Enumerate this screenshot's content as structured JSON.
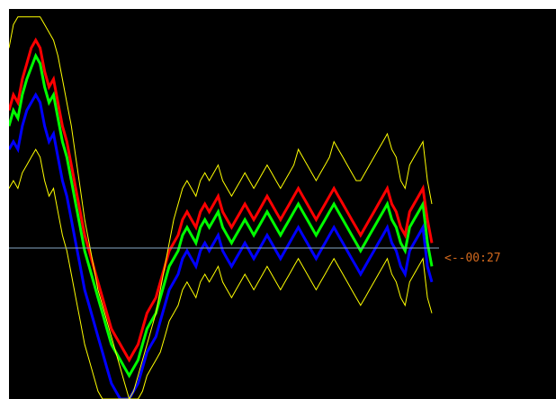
{
  "chart_data": {
    "type": "line",
    "title": "",
    "xlabel": "",
    "ylabel": "",
    "grid": false,
    "ylim": [
      0,
      100
    ],
    "x": [
      0,
      1,
      2,
      3,
      4,
      5,
      6,
      7,
      8,
      9,
      10,
      11,
      12,
      13,
      14,
      15,
      16,
      17,
      18,
      19,
      20,
      21,
      22,
      23,
      24,
      25,
      26,
      27,
      28,
      29,
      30,
      31,
      32,
      33,
      34,
      35,
      36,
      37,
      38,
      39,
      40,
      41,
      42,
      43,
      44,
      45,
      46,
      47,
      48,
      49,
      50,
      51,
      52,
      53,
      54,
      55,
      56,
      57,
      58,
      59,
      60,
      61,
      62,
      63,
      64,
      65,
      66,
      67,
      68,
      69,
      70,
      71,
      72,
      73,
      74,
      75,
      76,
      77,
      78,
      79,
      80,
      81,
      82,
      83,
      84,
      85,
      86,
      87,
      88,
      89,
      90,
      91,
      92,
      93,
      94,
      95
    ],
    "series": [
      {
        "color": "#00ff00",
        "values": [
          70,
          74,
          72,
          78,
          82,
          85,
          88,
          86,
          80,
          76,
          78,
          72,
          66,
          62,
          56,
          50,
          44,
          38,
          34,
          30,
          26,
          22,
          18,
          14,
          12,
          10,
          8,
          6,
          8,
          10,
          14,
          18,
          20,
          22,
          26,
          30,
          34,
          36,
          38,
          42,
          44,
          42,
          40,
          44,
          46,
          44,
          46,
          48,
          44,
          42,
          40,
          42,
          44,
          46,
          44,
          42,
          44,
          46,
          48,
          46,
          44,
          42,
          44,
          46,
          48,
          50,
          48,
          46,
          44,
          42,
          44,
          46,
          48,
          50,
          48,
          46,
          44,
          42,
          40,
          38,
          40,
          42,
          44,
          46,
          48,
          50,
          46,
          44,
          40,
          38,
          44,
          46,
          48,
          50,
          40,
          34
        ]
      },
      {
        "color": "#ff0000",
        "values": [
          74,
          78,
          76,
          82,
          86,
          90,
          92,
          90,
          84,
          80,
          82,
          76,
          70,
          66,
          60,
          54,
          48,
          42,
          38,
          34,
          30,
          26,
          22,
          18,
          16,
          14,
          12,
          10,
          12,
          14,
          18,
          22,
          24,
          26,
          30,
          34,
          38,
          40,
          42,
          46,
          48,
          46,
          44,
          48,
          50,
          48,
          50,
          52,
          48,
          46,
          44,
          46,
          48,
          50,
          48,
          46,
          48,
          50,
          52,
          50,
          48,
          46,
          48,
          50,
          52,
          54,
          52,
          50,
          48,
          46,
          48,
          50,
          52,
          54,
          52,
          50,
          48,
          46,
          44,
          42,
          44,
          46,
          48,
          50,
          52,
          54,
          50,
          48,
          44,
          42,
          48,
          50,
          52,
          54,
          46,
          40
        ]
      },
      {
        "color": "#0000ff",
        "values": [
          64,
          66,
          64,
          70,
          74,
          76,
          78,
          76,
          70,
          66,
          68,
          62,
          56,
          52,
          46,
          40,
          34,
          28,
          24,
          20,
          16,
          12,
          8,
          4,
          2,
          0,
          0,
          0,
          2,
          4,
          8,
          12,
          14,
          16,
          20,
          24,
          28,
          30,
          32,
          36,
          38,
          36,
          34,
          38,
          40,
          38,
          40,
          42,
          38,
          36,
          34,
          36,
          38,
          40,
          38,
          36,
          38,
          40,
          42,
          40,
          38,
          36,
          38,
          40,
          42,
          44,
          42,
          40,
          38,
          36,
          38,
          40,
          42,
          44,
          42,
          40,
          38,
          36,
          34,
          32,
          34,
          36,
          38,
          40,
          42,
          44,
          40,
          38,
          34,
          32,
          38,
          40,
          42,
          44,
          34,
          30
        ]
      },
      {
        "color": "#ffff00",
        "values": [
          90,
          96,
          98,
          98,
          98,
          98,
          98,
          98,
          96,
          94,
          92,
          88,
          82,
          76,
          70,
          62,
          54,
          46,
          40,
          34,
          28,
          24,
          20,
          16,
          12,
          8,
          4,
          0,
          2,
          6,
          10,
          14,
          18,
          22,
          28,
          34,
          40,
          46,
          50,
          54,
          56,
          54,
          52,
          56,
          58,
          56,
          58,
          60,
          56,
          54,
          52,
          54,
          56,
          58,
          56,
          54,
          56,
          58,
          60,
          58,
          56,
          54,
          56,
          58,
          60,
          64,
          62,
          60,
          58,
          56,
          58,
          60,
          62,
          66,
          64,
          62,
          60,
          58,
          56,
          56,
          58,
          60,
          62,
          64,
          66,
          68,
          64,
          62,
          56,
          54,
          60,
          62,
          64,
          66,
          56,
          50
        ]
      },
      {
        "color": "#ffff00",
        "values": [
          54,
          56,
          54,
          58,
          60,
          62,
          64,
          62,
          56,
          52,
          54,
          48,
          42,
          38,
          32,
          26,
          20,
          14,
          10,
          6,
          2,
          0,
          0,
          0,
          0,
          0,
          0,
          0,
          0,
          0,
          2,
          6,
          8,
          10,
          12,
          16,
          20,
          22,
          24,
          28,
          30,
          28,
          26,
          30,
          32,
          30,
          32,
          34,
          30,
          28,
          26,
          28,
          30,
          32,
          30,
          28,
          30,
          32,
          34,
          32,
          30,
          28,
          30,
          32,
          34,
          36,
          34,
          32,
          30,
          28,
          30,
          32,
          34,
          36,
          34,
          32,
          30,
          28,
          26,
          24,
          26,
          28,
          30,
          32,
          34,
          36,
          32,
          30,
          26,
          24,
          30,
          32,
          34,
          36,
          26,
          22
        ]
      }
    ],
    "annotations": [
      "<--00:27"
    ],
    "countdown_color": "#d2691e",
    "reference_line_color": "#87a9c6",
    "background_color": "#000000"
  }
}
